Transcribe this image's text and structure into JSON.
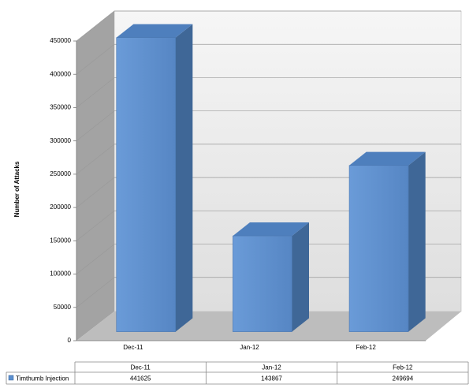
{
  "chart_data": {
    "type": "bar3d",
    "y_label": "Number of Attacks",
    "categories": [
      "Dec-11",
      "Jan-12",
      "Feb-12"
    ],
    "series": [
      {
        "name": "Timthumb Injection",
        "color": "#5b8fcf",
        "values": [
          441625,
          143867,
          249694
        ]
      }
    ],
    "ylim": [
      0,
      450000
    ],
    "yticks": [
      0,
      50000,
      100000,
      150000,
      200000,
      250000,
      300000,
      350000,
      400000,
      450000
    ],
    "grid": true,
    "data_table": true
  }
}
